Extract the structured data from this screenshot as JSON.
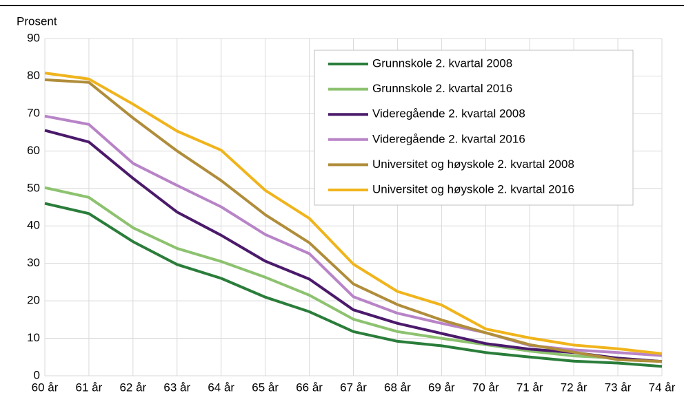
{
  "chart_data": {
    "type": "line",
    "y_label": "Prosent",
    "categories": [
      "60 år",
      "61 år",
      "62 år",
      "63 år",
      "64 år",
      "65 år",
      "66 år",
      "67 år",
      "68 år",
      "69 år",
      "70 år",
      "71 år",
      "72 år",
      "73 år",
      "74 år"
    ],
    "series": [
      {
        "name": "Grunnskole 2. kvartal 2008",
        "color": "#2a7d3a",
        "values": [
          46,
          43.3,
          35.8,
          29.7,
          26,
          21,
          17.1,
          11.8,
          9.2,
          8,
          6.2,
          5,
          3.9,
          3.4,
          2.5
        ]
      },
      {
        "name": "Grunnskole 2. kvartal 2016",
        "color": "#8dc26f",
        "values": [
          50.2,
          47.6,
          39.5,
          34,
          30.5,
          26.3,
          21.5,
          15.1,
          11.8,
          10,
          8.3,
          6.6,
          5.3,
          4.7,
          3.8
        ]
      },
      {
        "name": "Videregående 2. kvartal 2008",
        "color": "#4b1a6b",
        "values": [
          65.5,
          62.4,
          52.7,
          43.7,
          37.5,
          30.6,
          25.8,
          17.6,
          14,
          11.3,
          8.6,
          7.1,
          6.2,
          4.7,
          3.8
        ]
      },
      {
        "name": "Videregående 2. kvartal 2016",
        "color": "#b884c7",
        "values": [
          69.3,
          67.1,
          56.7,
          50.8,
          45.1,
          37.7,
          32.6,
          21.1,
          16.7,
          14,
          11.5,
          8.1,
          6.9,
          6.2,
          5.4
        ]
      },
      {
        "name": "Universitet og høyskole 2. kvartal 2008",
        "color": "#b08d3a",
        "values": [
          79,
          78.3,
          68.8,
          60,
          52.1,
          43,
          35.5,
          24.5,
          19,
          14.9,
          11.5,
          8.3,
          6.3,
          4.3,
          3.8
        ]
      },
      {
        "name": "Universitet og høyskole 2. kvartal 2016",
        "color": "#f0b41c",
        "values": [
          80.8,
          79.2,
          72.5,
          65.3,
          60.2,
          49.5,
          42,
          29.8,
          22.5,
          18.9,
          12.5,
          10.1,
          8.2,
          7.2,
          5.9
        ]
      }
    ],
    "ylim": [
      0,
      90
    ],
    "yticks": [
      0,
      10,
      20,
      30,
      40,
      50,
      60,
      70,
      80,
      90
    ],
    "grid": true,
    "legend": "upper right"
  }
}
